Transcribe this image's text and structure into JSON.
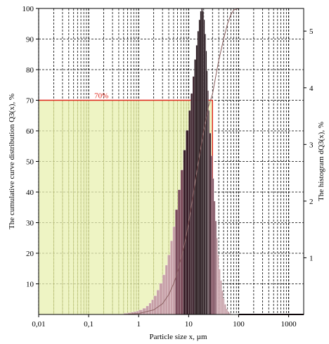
{
  "chart_data": {
    "type": "bar",
    "title": "",
    "xlabel": "Particle size x, µm",
    "ylabel_left": "The cumulative curve distribution Q3(x), %",
    "ylabel_right": "The histogram dQ3(x), %",
    "x_scale": "log",
    "xlim": [
      0.01,
      2000
    ],
    "ylim_left": [
      0,
      100
    ],
    "ylim_right": [
      0,
      5.4
    ],
    "x_ticks": [
      0.01,
      0.1,
      1,
      10,
      100,
      1000
    ],
    "x_tick_labels": [
      "0,01",
      "0,1",
      "1",
      "10",
      "100",
      "1000"
    ],
    "y_left_ticks": [
      10,
      20,
      30,
      40,
      50,
      60,
      70,
      80,
      90,
      100
    ],
    "y_left_tick_labels": [
      "10",
      "20",
      "30",
      "40",
      "50",
      "60",
      "70",
      "80",
      "90",
      "100"
    ],
    "y_right_ticks": [
      1,
      2,
      3,
      4,
      5
    ],
    "y_right_tick_labels": [
      "1",
      "2",
      "3",
      "4",
      "5"
    ],
    "grid": true,
    "grid_style": "dashed",
    "annotation": {
      "text": "70%",
      "level": 70,
      "x_limit": 30,
      "color": "#e0281e"
    },
    "shading_color": "#e8f0b0",
    "histogram": {
      "name": "",
      "bin_edges": [
        0.5,
        0.6,
        0.7,
        0.8,
        0.9,
        1,
        1.2,
        1.4,
        1.6,
        1.8,
        2,
        2.3,
        2.6,
        3,
        3.4,
        3.8,
        4.3,
        4.8,
        5.4,
        6.1,
        6.9,
        7.8,
        8.8,
        10,
        11,
        12,
        13,
        14,
        15,
        16,
        17,
        18,
        19,
        20,
        21,
        22,
        23,
        24,
        25,
        26,
        28,
        30,
        32,
        34,
        36,
        38,
        40,
        43,
        46,
        49,
        52,
        56,
        60,
        65,
        70,
        75,
        80,
        90,
        100
      ],
      "values": [
        0.02,
        0.03,
        0.04,
        0.05,
        0.06,
        0.08,
        0.11,
        0.15,
        0.2,
        0.26,
        0.33,
        0.43,
        0.55,
        0.7,
        0.87,
        1.05,
        1.3,
        1.55,
        1.85,
        2.2,
        2.55,
        2.9,
        3.25,
        3.6,
        3.9,
        4.2,
        4.5,
        4.75,
        5.0,
        5.2,
        5.35,
        5.4,
        5.35,
        5.2,
        4.95,
        4.65,
        4.3,
        3.95,
        3.6,
        3.2,
        2.8,
        2.4,
        2.0,
        1.65,
        1.35,
        1.05,
        0.8,
        0.6,
        0.42,
        0.28,
        0.18,
        0.1,
        0.05,
        0.02,
        0.01,
        0.005,
        0.003,
        0.0
      ]
    },
    "cumulative": {
      "name": "",
      "x": [
        0.5,
        1,
        2,
        3,
        4,
        5,
        6,
        7,
        8,
        9,
        10,
        12,
        15,
        20,
        25,
        30,
        35,
        40,
        50,
        60,
        70,
        80,
        100
      ],
      "y": [
        0,
        0.3,
        1.5,
        3.5,
        6.5,
        10,
        14,
        18,
        22,
        26,
        30,
        38,
        48,
        60,
        68,
        72,
        78,
        83,
        90,
        95,
        98,
        99.5,
        100
      ]
    },
    "colors": {
      "bar_dark": "#1a0a10",
      "bar_mid": "#7a4a5a",
      "bar_light": "#c7a0a8",
      "curve": "#8a6060",
      "axis": "#000000"
    }
  }
}
